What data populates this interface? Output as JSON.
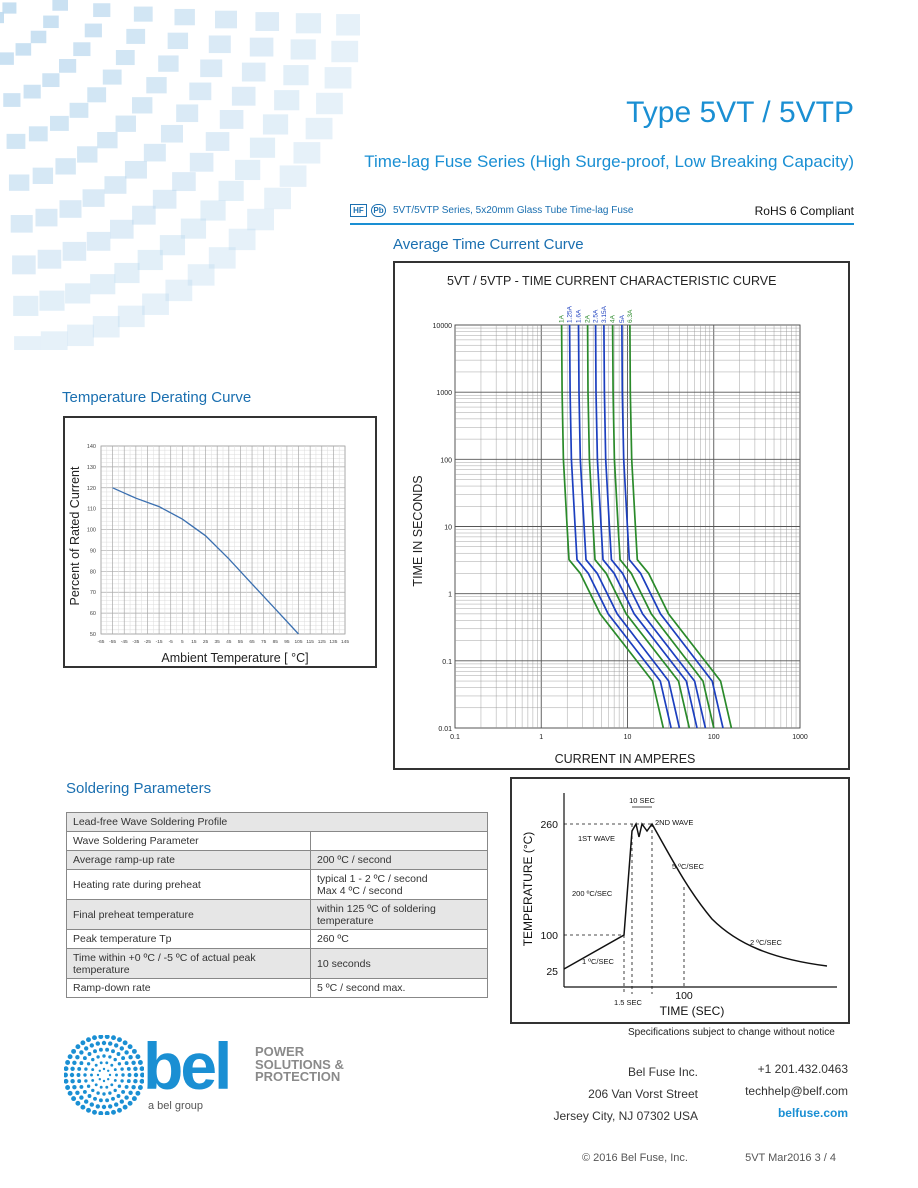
{
  "header": {
    "title": "Type 5VT / 5VTP",
    "subtitle": "Time-lag Fuse Series (High Surge-proof, Low Breaking Capacity)",
    "badge_hf": "HF",
    "badge_pb": "Pb",
    "series_text": "5VT/5VTP Series, 5x20mm Glass Tube Time-lag Fuse",
    "rohs": "RoHS 6 Compliant"
  },
  "colors": {
    "accent": "#1a8fd3",
    "green_curve": "#2a8a2a",
    "blue_curve": "#1c3fbf",
    "derating_line": "#3a6fb0"
  },
  "sections": {
    "time_current": "Average Time Current Curve",
    "derating": "Temperature Derating Curve",
    "soldering": "Soldering Parameters"
  },
  "chart_data": [
    {
      "type": "line",
      "title": "Temperature Derating Curve",
      "xlabel": "Ambient Temperature [ °C]",
      "ylabel": "Percent of Rated Current",
      "xticks": [
        "-65",
        "-55",
        "-45",
        "-35",
        "-25",
        "-15",
        "-5",
        "5",
        "15",
        "25",
        "35",
        "45",
        "55",
        "65",
        "75",
        "85",
        "95",
        "105",
        "115",
        "125",
        "135",
        "145"
      ],
      "yticks": [
        "50",
        "60",
        "70",
        "80",
        "90",
        "100",
        "110",
        "120",
        "130",
        "140"
      ],
      "xlim": [
        -65,
        145
      ],
      "ylim": [
        50,
        140
      ],
      "grid": true,
      "series": [
        {
          "x": [
            -55,
            -35,
            -15,
            5,
            25,
            45,
            65,
            85,
            105
          ],
          "values": [
            120,
            115,
            111,
            105,
            97,
            86,
            74,
            62,
            50
          ]
        }
      ]
    },
    {
      "type": "line",
      "title": "5VT / 5VTP - TIME CURRENT CHARACTERISTIC CURVE",
      "xlabel": "CURRENT IN AMPERES",
      "ylabel": "TIME IN SECONDS",
      "x_scale": "log",
      "y_scale": "log",
      "xlim": [
        0.1,
        1000
      ],
      "ylim": [
        0.01,
        10000
      ],
      "xticks": [
        "0.1",
        "1",
        "10",
        "100",
        "1000"
      ],
      "yticks": [
        "0.01",
        "0.1",
        "1",
        "10",
        "100",
        "1000",
        "10000"
      ],
      "grid": true,
      "series": [
        {
          "name": "1A",
          "color": "green",
          "knee_current": 2.1,
          "end_current": 26
        },
        {
          "name": "1.25A",
          "color": "blue",
          "knee_current": 2.6,
          "end_current": 32
        },
        {
          "name": "1.6A",
          "color": "blue",
          "knee_current": 3.3,
          "end_current": 40
        },
        {
          "name": "2A",
          "color": "green",
          "knee_current": 4.2,
          "end_current": 52
        },
        {
          "name": "2.5A",
          "color": "blue",
          "knee_current": 5.2,
          "end_current": 64
        },
        {
          "name": "3.15A",
          "color": "blue",
          "knee_current": 6.5,
          "end_current": 80
        },
        {
          "name": "4A",
          "color": "green",
          "knee_current": 8.2,
          "end_current": 100
        },
        {
          "name": "5A",
          "color": "blue",
          "knee_current": 10.5,
          "end_current": 128
        },
        {
          "name": "6.3A",
          "color": "green",
          "knee_current": 13,
          "end_current": 160
        }
      ]
    },
    {
      "type": "line",
      "title": "",
      "xlabel": "TIME (SEC)",
      "ylabel": "TEMPERATURE (°C)",
      "ytick_labels": [
        "260",
        "100",
        "25"
      ],
      "xtick_labels": [
        "100"
      ],
      "annotations": [
        "10 SEC",
        "2ND WAVE",
        "1ST WAVE",
        "5 ºC/SEC",
        "200 ºC/SEC",
        "2 ºC/SEC",
        "1 ºC/SEC",
        "1.5 SEC"
      ]
    }
  ],
  "soldering_table": {
    "rows": [
      {
        "cells": [
          "Lead-free Wave Soldering Profile"
        ],
        "span": true,
        "shade": true
      },
      {
        "cells": [
          "Wave Soldering Parameter",
          ""
        ]
      },
      {
        "cells": [
          "Average ramp-up rate",
          "200 ºC / second"
        ],
        "shade": true
      },
      {
        "cells": [
          "Heating rate during preheat",
          "typical 1 - 2 ºC / second\nMax 4 ºC / second"
        ]
      },
      {
        "cells": [
          "Final preheat temperature",
          "within 125 ºC of soldering temperature"
        ],
        "shade": true
      },
      {
        "cells": [
          "Peak temperature Tp",
          "260 ºC"
        ]
      },
      {
        "cells": [
          "Time within +0 ºC / -5 ºC of actual peak temperature",
          "10 seconds"
        ],
        "shade": true
      },
      {
        "cells": [
          "Ramp-down rate",
          "5 ºC / second max."
        ]
      }
    ]
  },
  "spec_note": "Specifications subject to change without notice",
  "brand": {
    "logo_word": "bel",
    "tagline_lines": [
      "POWER",
      "SOLUTIONS &",
      "PROTECTION"
    ],
    "group": "a bel group"
  },
  "address": {
    "line1": "Bel Fuse Inc.",
    "line2": "206 Van Vorst Street",
    "line3": "Jersey City, NJ 07302 USA"
  },
  "contact": {
    "phone": "+1 201.432.0463",
    "email": "techhelp@belf.com",
    "web": "belfuse.com"
  },
  "footer": {
    "copyright": "© 2016 Bel Fuse, Inc.",
    "doc_ref": "5VT Mar2016 3 / 4"
  }
}
